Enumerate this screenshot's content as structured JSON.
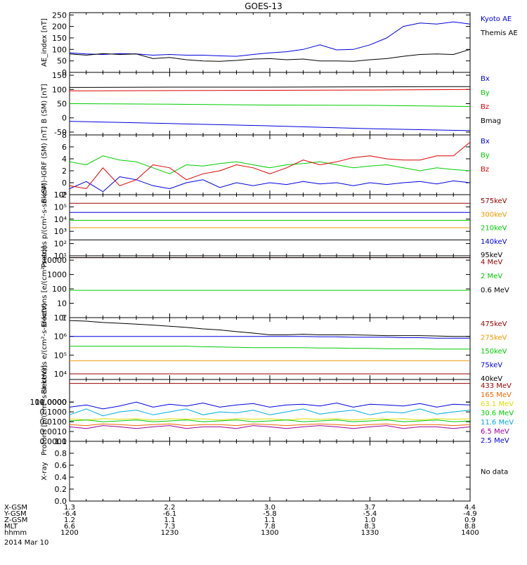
{
  "title": "GOES-13",
  "chart_data": [
    {
      "type": "line",
      "ylabel": "AE_index [nT]",
      "yticks": [
        "0",
        "50",
        "100",
        "150",
        "200",
        "250"
      ],
      "ylim": [
        0,
        260
      ],
      "scale": "linear",
      "x": [
        1200,
        1205,
        1210,
        1215,
        1220,
        1225,
        1230,
        1235,
        1240,
        1245,
        1250,
        1255,
        1300,
        1305,
        1310,
        1315,
        1320,
        1325,
        1330,
        1335,
        1340,
        1345,
        1350,
        1355,
        1400
      ],
      "series": [
        {
          "name": "Kyoto AE",
          "color": "#0000dd",
          "values": [
            85,
            80,
            78,
            82,
            80,
            75,
            78,
            75,
            75,
            72,
            70,
            78,
            85,
            90,
            100,
            120,
            98,
            100,
            120,
            150,
            200,
            215,
            210,
            220,
            210
          ]
        },
        {
          "name": "Themis AE",
          "color": "#000000",
          "values": [
            80,
            75,
            82,
            78,
            80,
            60,
            65,
            55,
            50,
            48,
            52,
            58,
            60,
            55,
            58,
            50,
            50,
            48,
            55,
            60,
            70,
            78,
            80,
            78,
            100
          ]
        }
      ]
    },
    {
      "type": "line",
      "ylabel": "B (SM) [nT]",
      "yticks": [
        "-50",
        "0",
        "50",
        "100",
        "150"
      ],
      "ylim": [
        -60,
        160
      ],
      "scale": "linear",
      "x": [
        1200,
        1230,
        1300,
        1330,
        1400
      ],
      "series": [
        {
          "name": "Bx",
          "color": "#0000dd",
          "values": [
            -12,
            -20,
            -28,
            -38,
            -45
          ]
        },
        {
          "name": "By",
          "color": "#00cc00",
          "values": [
            50,
            48,
            45,
            44,
            40
          ]
        },
        {
          "name": "Bz",
          "color": "#dd0000",
          "values": [
            95,
            96,
            97,
            98,
            100
          ]
        },
        {
          "name": "Bmag",
          "color": "#000000",
          "values": [
            107,
            108,
            108,
            109,
            110
          ]
        }
      ]
    },
    {
      "type": "line",
      "ylabel": "B (SM)-IGRF (SM) [nT]",
      "yticks": [
        "-2",
        "0",
        "2",
        "4",
        "6",
        "8"
      ],
      "ylim": [
        -2,
        8
      ],
      "scale": "linear",
      "x": [
        1200,
        1205,
        1210,
        1215,
        1220,
        1225,
        1230,
        1235,
        1240,
        1245,
        1250,
        1255,
        1300,
        1305,
        1310,
        1315,
        1320,
        1325,
        1330,
        1335,
        1340,
        1345,
        1350,
        1355,
        1400
      ],
      "series": [
        {
          "name": "Bx",
          "color": "#0000dd",
          "values": [
            -1.0,
            0.2,
            -1.5,
            1.0,
            0.5,
            -0.5,
            -1.0,
            0.0,
            0.5,
            -0.8,
            0.0,
            -0.5,
            0.0,
            -0.3,
            0.2,
            -0.2,
            0.0,
            -0.5,
            0.0,
            -0.3,
            0.0,
            0.2,
            -0.2,
            0.3,
            0.0
          ]
        },
        {
          "name": "By",
          "color": "#00cc00",
          "values": [
            3.5,
            3.0,
            4.5,
            3.8,
            3.5,
            2.5,
            1.5,
            3.0,
            2.8,
            3.2,
            3.5,
            3.0,
            2.5,
            3.0,
            3.2,
            3.5,
            3.0,
            2.5,
            2.8,
            3.0,
            2.5,
            2.0,
            2.5,
            2.2,
            2.0
          ]
        },
        {
          "name": "Bz",
          "color": "#dd0000",
          "values": [
            -0.5,
            -1.0,
            2.5,
            -0.5,
            0.5,
            3.0,
            2.5,
            0.5,
            1.5,
            2.0,
            3.0,
            2.5,
            1.5,
            2.5,
            3.8,
            3.0,
            3.5,
            4.2,
            4.5,
            4.0,
            3.8,
            3.8,
            4.5,
            4.5,
            6.8
          ]
        }
      ]
    },
    {
      "type": "line",
      "ylabel": "Protons p/(cm²-s-sr-keV)",
      "yticks": [
        "10¹",
        "10²",
        "10³",
        "10⁴",
        "10⁵",
        "10⁶"
      ],
      "ylim": [
        10,
        1000000
      ],
      "scale": "log",
      "x": [
        1200,
        1230,
        1300,
        1330,
        1400
      ],
      "series": [
        {
          "name": "575keV",
          "color": "#990000",
          "values": [
            200000,
            200000,
            200000,
            200000,
            200000
          ]
        },
        {
          "name": "300keV",
          "color": "#ee9900",
          "values": [
            2000,
            2000,
            2000,
            2000,
            2000
          ]
        },
        {
          "name": "210keV",
          "color": "#00cc00",
          "values": [
            8000,
            8000,
            8000,
            8000,
            8000
          ]
        },
        {
          "name": "140keV",
          "color": "#0000dd",
          "values": [
            35000,
            35000,
            35000,
            35000,
            35000
          ]
        },
        {
          "name": "95keV",
          "color": "#000000",
          "values": [
            200,
            200,
            200,
            200,
            200
          ]
        }
      ]
    },
    {
      "type": "line",
      "ylabel": "Electrons [e/(cm²-s-sr)]",
      "yticks": [
        "1",
        "10",
        "100",
        "1000",
        "10000"
      ],
      "ylim": [
        1,
        20000
      ],
      "scale": "log",
      "x": [
        1200,
        1230,
        1300,
        1330,
        1400
      ],
      "series": [
        {
          "name": "4 MeV",
          "color": "#990000",
          "values": [
            15000,
            15000,
            15000,
            15000,
            15000
          ]
        },
        {
          "name": "2 MeV",
          "color": "#00cc00",
          "values": [
            80,
            80,
            80,
            80,
            80
          ]
        },
        {
          "name": "0.6 MeV",
          "color": "#000000",
          "values": [
            15000,
            15000,
            15000,
            15000,
            15000
          ]
        }
      ]
    },
    {
      "type": "line",
      "ylabel": "Electrons e/(cm²-s-sr-keV)",
      "yticks": [
        "10⁴",
        "10⁵",
        "10⁶",
        "10⁷"
      ],
      "ylim": [
        5000,
        10000000
      ],
      "scale": "log",
      "x": [
        1200,
        1205,
        1210,
        1215,
        1220,
        1225,
        1230,
        1235,
        1240,
        1245,
        1250,
        1255,
        1300,
        1305,
        1310,
        1315,
        1320,
        1325,
        1330,
        1335,
        1340,
        1345,
        1350,
        1355,
        1400
      ],
      "series": [
        {
          "name": "475keV",
          "color": "#990000",
          "values": [
            10000,
            10000,
            10000,
            10000,
            10000,
            10000,
            10000,
            10000,
            10000,
            10000,
            10000,
            10000,
            10000,
            10000,
            10000,
            10000,
            10000,
            10000,
            10000,
            10000,
            10000,
            10000,
            10000,
            10000,
            10000
          ]
        },
        {
          "name": "275keV",
          "color": "#ee9900",
          "values": [
            50000,
            50000,
            50000,
            50000,
            50000,
            50000,
            50000,
            50000,
            50000,
            50000,
            50000,
            50000,
            50000,
            50000,
            50000,
            50000,
            50000,
            50000,
            50000,
            50000,
            50000,
            50000,
            50000,
            50000,
            50000
          ]
        },
        {
          "name": "150keV",
          "color": "#00cc00",
          "values": [
            300000,
            300000,
            300000,
            300000,
            300000,
            300000,
            300000,
            300000,
            280000,
            270000,
            260000,
            250000,
            250000,
            250000,
            250000,
            240000,
            240000,
            230000,
            230000,
            220000,
            220000,
            220000,
            210000,
            210000,
            210000
          ]
        },
        {
          "name": "75keV",
          "color": "#0000dd",
          "values": [
            1000000,
            1000000,
            1000000,
            1000000,
            1000000,
            1000000,
            1000000,
            1000000,
            1000000,
            1000000,
            1000000,
            1000000,
            1000000,
            1000000,
            1000000,
            950000,
            950000,
            900000,
            900000,
            900000,
            850000,
            850000,
            800000,
            800000,
            800000
          ]
        },
        {
          "name": "40keV",
          "color": "#000000",
          "values": [
            7000000,
            6500000,
            5500000,
            5000000,
            4500000,
            4000000,
            3500000,
            3000000,
            2500000,
            2200000,
            1800000,
            1500000,
            1200000,
            1200000,
            1300000,
            1200000,
            1200000,
            1200000,
            1150000,
            1100000,
            1100000,
            1100000,
            1050000,
            1000000,
            1000000
          ]
        }
      ]
    },
    {
      "type": "line",
      "ylabel": "Protons [p/(cm²-s-sr-keV)]",
      "yticks": [
        "0.0001",
        "0.0010",
        "0.0100",
        "0.1000",
        "1.0000",
        "10.0000",
        "100.0000"
      ],
      "ylim": [
        0.0001,
        200
      ],
      "scale": "log",
      "x": [
        1200,
        1205,
        1210,
        1215,
        1220,
        1225,
        1230,
        1235,
        1240,
        1245,
        1250,
        1255,
        1300,
        1305,
        1310,
        1315,
        1320,
        1325,
        1330,
        1335,
        1340,
        1345,
        1350,
        1355,
        1400
      ],
      "series": [
        {
          "name": "433 MeV",
          "color": "#990000",
          "values": [
            80,
            80,
            80,
            80,
            80,
            80,
            80,
            80,
            80,
            80,
            80,
            80,
            80,
            80,
            80,
            80,
            80,
            80,
            80,
            80,
            80,
            80,
            80,
            80,
            80
          ]
        },
        {
          "name": "165 MeV",
          "color": "#ee6600",
          "values": [
            0.005,
            0.004,
            0.006,
            0.005,
            0.004,
            0.005,
            0.006,
            0.004,
            0.005,
            0.005,
            0.004,
            0.006,
            0.005,
            0.004,
            0.005,
            0.006,
            0.005,
            0.004,
            0.005,
            0.006,
            0.004,
            0.005,
            0.005,
            0.004,
            0.005
          ]
        },
        {
          "name": "63.1 MeV",
          "color": "#dddd00",
          "values": [
            0.02,
            0.015,
            0.02,
            0.018,
            0.02,
            0.015,
            0.02,
            0.018,
            0.02,
            0.015,
            0.02,
            0.018,
            0.02,
            0.015,
            0.02,
            0.018,
            0.02,
            0.015,
            0.02,
            0.018,
            0.02,
            0.015,
            0.02,
            0.018,
            0.02
          ]
        },
        {
          "name": "30.6 MeV",
          "color": "#00cc00",
          "values": [
            0.012,
            0.015,
            0.01,
            0.012,
            0.015,
            0.01,
            0.012,
            0.015,
            0.01,
            0.012,
            0.015,
            0.01,
            0.012,
            0.015,
            0.01,
            0.012,
            0.015,
            0.01,
            0.012,
            0.015,
            0.01,
            0.012,
            0.015,
            0.01,
            0.012
          ]
        },
        {
          "name": "11.6 MeV",
          "color": "#00aadd",
          "values": [
            0.05,
            0.2,
            0.04,
            0.1,
            0.15,
            0.05,
            0.1,
            0.2,
            0.05,
            0.1,
            0.08,
            0.15,
            0.05,
            0.1,
            0.2,
            0.06,
            0.1,
            0.15,
            0.05,
            0.1,
            0.08,
            0.2,
            0.06,
            0.1,
            0.15
          ]
        },
        {
          "name": "6.5 MeV",
          "color": "#990099",
          "values": [
            0.003,
            0.002,
            0.004,
            0.003,
            0.002,
            0.003,
            0.004,
            0.002,
            0.003,
            0.003,
            0.002,
            0.004,
            0.003,
            0.002,
            0.003,
            0.004,
            0.003,
            0.002,
            0.003,
            0.004,
            0.002,
            0.003,
            0.003,
            0.002,
            0.003
          ]
        },
        {
          "name": "2.5 MeV",
          "color": "#0000dd",
          "values": [
            0.3,
            0.5,
            0.2,
            0.4,
            1.0,
            0.3,
            0.6,
            0.4,
            0.8,
            0.3,
            0.5,
            0.7,
            0.3,
            0.5,
            0.6,
            0.4,
            0.8,
            0.3,
            0.6,
            0.5,
            0.4,
            0.7,
            0.3,
            0.6,
            0.5
          ]
        }
      ]
    },
    {
      "type": "line",
      "ylabel": "X-ray",
      "yticks": [
        "0.0",
        "0.2",
        "0.4",
        "0.6",
        "0.8",
        "1.0"
      ],
      "ylim": [
        0,
        1
      ],
      "scale": "linear",
      "x": [],
      "series": [],
      "note": "No data"
    }
  ],
  "footer": {
    "rows": [
      {
        "label": "X-GSM",
        "values": [
          "1.3",
          "2.2",
          "3.0",
          "3.7",
          "4.4"
        ]
      },
      {
        "label": "Y-GSM",
        "values": [
          "-6.4",
          "-6.1",
          "-5.8",
          "-5.4",
          "-4.9"
        ]
      },
      {
        "label": "Z-GSM",
        "values": [
          "1.2",
          "1.1",
          "1.1",
          "1.0",
          "0.9"
        ]
      },
      {
        "label": "MLT",
        "values": [
          "6.6",
          "7.3",
          "7.8",
          "8.3",
          "8.8"
        ]
      },
      {
        "label": "hhmm",
        "values": [
          "1200",
          "1230",
          "1300",
          "1330",
          "1400"
        ]
      }
    ],
    "date": "2014 Mar 10"
  },
  "colors": {
    "black": "#000000",
    "blue": "#0000dd",
    "green": "#00cc00",
    "red": "#dd0000"
  }
}
